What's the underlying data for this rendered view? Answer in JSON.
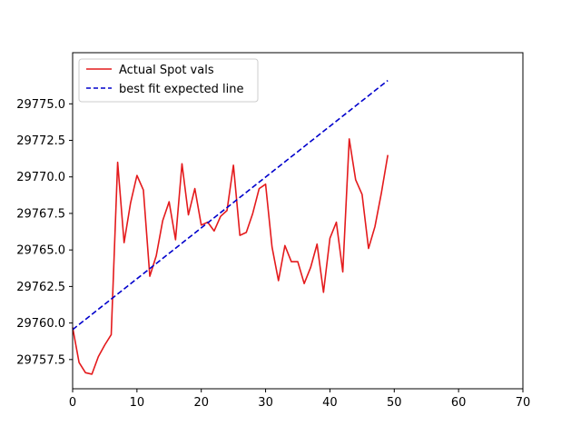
{
  "chart_data": {
    "type": "line",
    "title": "",
    "xlabel": "",
    "ylabel": "",
    "xlim": [
      0,
      70
    ],
    "ylim": [
      29755.5,
      29778.5
    ],
    "xticks": [
      0,
      10,
      20,
      30,
      40,
      50,
      60,
      70
    ],
    "yticks": [
      29757.5,
      29760.0,
      29762.5,
      29765.0,
      29767.5,
      29770.0,
      29772.5,
      29775.0
    ],
    "ytick_labels": [
      "29757.5",
      "29760.0",
      "29762.5",
      "29765.0",
      "29767.5",
      "29770.0",
      "29772.5",
      "29775.0"
    ],
    "grid": false,
    "legend_position": "upper-left",
    "series": [
      {
        "name": "Actual Spot vals",
        "color": "#e41a1c",
        "style": "solid",
        "x": [
          0,
          1,
          2,
          3,
          4,
          5,
          6,
          7,
          8,
          9,
          10,
          11,
          12,
          13,
          14,
          15,
          16,
          17,
          18,
          19,
          20,
          21,
          22,
          23,
          24,
          25,
          26,
          27,
          28,
          29,
          30,
          31,
          32,
          33,
          34,
          35,
          36,
          37,
          38,
          39,
          40,
          41,
          42,
          43,
          44,
          45,
          46,
          47,
          48,
          49
        ],
        "y": [
          29759.7,
          29757.3,
          29756.6,
          29756.5,
          29757.7,
          29758.5,
          29759.2,
          29771.0,
          29765.5,
          29768.2,
          29770.1,
          29769.1,
          29763.2,
          29764.6,
          29767.0,
          29768.3,
          29765.7,
          29770.9,
          29767.4,
          29769.2,
          29766.7,
          29766.9,
          29766.3,
          29767.3,
          29767.7,
          29770.8,
          29766.0,
          29766.2,
          29767.5,
          29769.2,
          29769.5,
          29765.2,
          29762.9,
          29765.3,
          29764.2,
          29764.2,
          29762.7,
          29763.8,
          29765.4,
          29762.1,
          29765.8,
          29766.9,
          29763.5,
          29772.6,
          29769.8,
          29768.8,
          29765.1,
          29766.6,
          29768.9,
          29771.5
        ]
      },
      {
        "name": "best fit expected line",
        "color": "#0000cc",
        "style": "dashed",
        "x": [
          0,
          49
        ],
        "y": [
          29759.55,
          29776.6
        ]
      }
    ]
  }
}
